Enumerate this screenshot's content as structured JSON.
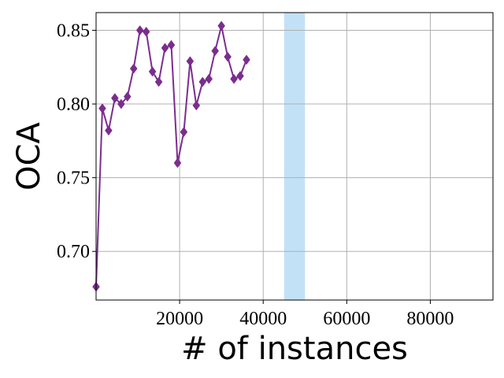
{
  "chart_data": {
    "type": "line",
    "xlabel": "# of instances",
    "ylabel": "OCA",
    "xlim": [
      0,
      95000
    ],
    "ylim": [
      0.667,
      0.862
    ],
    "xticks": [
      20000,
      40000,
      60000,
      80000
    ],
    "xtick_labels": [
      "20000",
      "40000",
      "60000",
      "80000"
    ],
    "yticks": [
      0.7,
      0.75,
      0.8,
      0.85
    ],
    "ytick_labels": [
      "0.70",
      "0.75",
      "0.80",
      "0.85"
    ],
    "grid": true,
    "highlight_band": {
      "x_start": 45000,
      "x_end": 50000,
      "color": "#c2e1f7"
    },
    "series": [
      {
        "color": "#7b2d8e",
        "marker": "diamond",
        "x": [
          0,
          1500,
          3000,
          4500,
          6000,
          7500,
          9000,
          10500,
          12000,
          13500,
          15000,
          16500,
          18000,
          19500,
          21000,
          22500,
          24000,
          25500,
          27000,
          28500,
          30000,
          31500,
          33000,
          34500,
          36000
        ],
        "y": [
          0.676,
          0.797,
          0.782,
          0.804,
          0.8,
          0.805,
          0.824,
          0.85,
          0.849,
          0.822,
          0.815,
          0.838,
          0.84,
          0.76,
          0.781,
          0.829,
          0.799,
          0.815,
          0.817,
          0.836,
          0.853,
          0.832,
          0.817,
          0.819,
          0.83
        ]
      }
    ]
  }
}
